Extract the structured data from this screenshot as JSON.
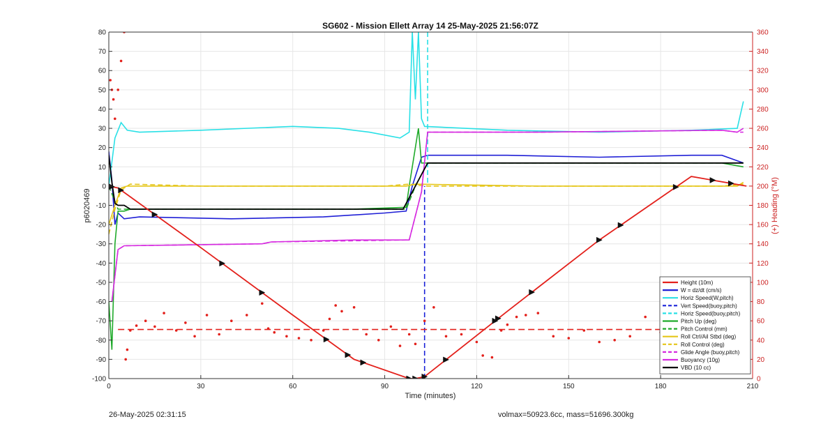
{
  "chart_data": {
    "type": "line",
    "title": "SG602 - Mission Ellett Array 14 25-May-2025 21:56:07Z",
    "xlabel": "Time (minutes)",
    "ylabel_left": "p6020469",
    "ylabel_right": "(+) Heading (°M)",
    "xlim": [
      0,
      210
    ],
    "ylim_left": [
      -100,
      80
    ],
    "ylim_right": [
      0,
      360
    ],
    "xticks": [
      0,
      30,
      60,
      90,
      120,
      150,
      180,
      210
    ],
    "yticks_left": [
      -100,
      -90,
      -80,
      -70,
      -60,
      -50,
      -40,
      -30,
      -20,
      -10,
      0,
      10,
      20,
      30,
      40,
      50,
      60,
      70,
      80
    ],
    "yticks_right": [
      0,
      20,
      40,
      60,
      80,
      100,
      120,
      140,
      160,
      180,
      200,
      220,
      240,
      260,
      280,
      300,
      320,
      340,
      360
    ],
    "grid": true,
    "legend_position": "bottom-right",
    "colors": {
      "height": "#e3201b",
      "w": "#1f1fd6",
      "horiz_speed": "#29e0e6",
      "vert_speed_buoy": "#1a22d8",
      "horiz_speed_buoy": "#29e0e6",
      "pitch_up": "#1faa2a",
      "pitch_control": "#1faa2a",
      "roll": "#e5c619",
      "roll_control": "#e5c619",
      "glide_angle": "#d62be0",
      "buoyancy": "#d62be0",
      "vbd": "#000000",
      "heading": "#e3201b",
      "right_axis": "#cc2222"
    },
    "series": [
      {
        "name": "Height (10m)",
        "style": "solid",
        "x": [
          0,
          3,
          30,
          60,
          80,
          98,
          100,
          103,
          130,
          160,
          190,
          208
        ],
        "y": [
          0,
          -1,
          -32,
          -67,
          -90,
          -100,
          -100,
          -99,
          -65,
          -28,
          5,
          0
        ]
      },
      {
        "name": "W = dz/dt (cm/s)",
        "style": "solid",
        "x": [
          0,
          1,
          2,
          3,
          5,
          10,
          40,
          70,
          90,
          97,
          99,
          101,
          102,
          104,
          130,
          160,
          190,
          200,
          207
        ],
        "y": [
          18,
          3,
          -20,
          -14,
          -17,
          -16,
          -17,
          -16,
          -14,
          -13,
          0,
          10,
          15,
          16,
          16,
          15,
          16,
          16,
          12
        ]
      },
      {
        "name": "Horiz Speed(W,pitch)",
        "style": "solid",
        "x": [
          0,
          2,
          4,
          6,
          10,
          30,
          60,
          75,
          85,
          95,
          98,
          99,
          100,
          101,
          102,
          103,
          130,
          160,
          190,
          205,
          207
        ],
        "y": [
          0,
          25,
          33,
          29,
          28,
          29,
          31,
          30,
          28,
          25,
          28,
          80,
          45,
          80,
          35,
          31,
          29,
          28,
          29,
          30,
          44
        ]
      },
      {
        "name": "Vert Speed(buoy,pitch)",
        "style": "dashed",
        "x": [
          103,
          103
        ],
        "y": [
          -100,
          0
        ]
      },
      {
        "name": "Horiz Speed(buoy,pitch)",
        "style": "dashed",
        "x": [
          104,
          104
        ],
        "y": [
          80,
          0
        ]
      },
      {
        "name": "Pitch Up (deg)",
        "style": "solid",
        "x": [
          0,
          1,
          2,
          3,
          5,
          7,
          40,
          80,
          97,
          98,
          101,
          102,
          104,
          130,
          200,
          207
        ],
        "y": [
          -60,
          -85,
          -30,
          -13,
          -13,
          -12,
          -12,
          -12,
          -11,
          0,
          30,
          12,
          12,
          12,
          12,
          10
        ]
      },
      {
        "name": "Pitch Control (mm)",
        "style": "dashed",
        "x": [
          0,
          3,
          5,
          97,
          100,
          104,
          207
        ],
        "y": [
          0,
          -12,
          -12,
          -12,
          0,
          12,
          12
        ]
      },
      {
        "name": "Roll Ctrl/Ail Stbd (deg)",
        "style": "solid",
        "x": [
          0,
          2,
          4,
          6,
          30,
          60,
          90,
          97,
          100,
          140,
          180,
          205,
          207
        ],
        "y": [
          -20,
          -10,
          -1,
          0,
          0,
          0,
          0,
          0,
          1,
          0,
          0,
          0,
          2
        ]
      },
      {
        "name": "Roll Control (deg)",
        "style": "dashed",
        "x": [
          0,
          2,
          4,
          7,
          30,
          60,
          90,
          98,
          104,
          150,
          200,
          207
        ],
        "y": [
          -25,
          -12,
          -2,
          1,
          0,
          0,
          0,
          1,
          0,
          0,
          0,
          1
        ]
      },
      {
        "name": "Glide Angle (buoy,pitch)",
        "style": "dashed",
        "x": [
          1,
          3,
          5,
          50,
          53,
          97,
          98,
          102,
          104,
          140,
          200,
          205,
          207
        ],
        "y": [
          -60,
          -33,
          -31,
          -30,
          -29,
          -28,
          -28,
          -3,
          28,
          28,
          29,
          28,
          28
        ]
      },
      {
        "name": "Buoyancy (10g)",
        "style": "solid",
        "x": [
          1,
          3,
          5,
          50,
          53,
          80,
          97,
          98,
          102,
          104,
          140,
          200,
          205,
          207
        ],
        "y": [
          -60,
          -33,
          -31,
          -30,
          -29,
          -28,
          -28,
          -28,
          -3,
          28,
          28,
          29,
          28,
          30
        ]
      },
      {
        "name": "VBD (10 cc)",
        "style": "solid",
        "x": [
          0,
          1,
          2,
          3,
          5,
          7,
          40,
          80,
          96,
          99,
          104,
          130,
          180,
          207
        ],
        "y": [
          16,
          2,
          -9,
          -10,
          -10,
          -12,
          -12,
          -12,
          -12,
          -3,
          12,
          12,
          12,
          12
        ]
      }
    ],
    "heading_series": {
      "name": "Heading",
      "axis": "right",
      "x": [
        0.5,
        1,
        1.5,
        2,
        3,
        4,
        5,
        5.5,
        6,
        7,
        9,
        12,
        15,
        18,
        22,
        25,
        28,
        32,
        36,
        40,
        45,
        50,
        52,
        54,
        58,
        62,
        66,
        70,
        72,
        74,
        76,
        80,
        84,
        88,
        92,
        95,
        98,
        100,
        103,
        106,
        110,
        115,
        120,
        122,
        125,
        128,
        130,
        133,
        136,
        140,
        145,
        150,
        155,
        160,
        165,
        170,
        175,
        180,
        185,
        190,
        195,
        198,
        200,
        203,
        205,
        207
      ],
      "y": [
        310,
        300,
        290,
        270,
        300,
        330,
        360,
        20,
        30,
        50,
        55,
        60,
        54,
        68,
        50,
        58,
        44,
        66,
        46,
        60,
        66,
        78,
        52,
        48,
        44,
        42,
        40,
        50,
        62,
        76,
        70,
        74,
        46,
        40,
        54,
        34,
        46,
        36,
        60,
        74,
        44,
        46,
        38,
        24,
        22,
        50,
        56,
        64,
        66,
        68,
        44,
        42,
        50,
        38,
        40,
        44,
        64,
        48,
        40,
        62,
        42,
        38,
        64,
        60,
        74,
        30
      ]
    },
    "heading_mean": {
      "axis": "right",
      "style": "dashed",
      "y": 51
    },
    "markers": {
      "on_series": "Height (10m)",
      "x": [
        1,
        4,
        15,
        37,
        50,
        71,
        78,
        83,
        98,
        100,
        103,
        110,
        126,
        127,
        138,
        160,
        167,
        185,
        197,
        203
      ]
    }
  },
  "footer": {
    "left": "26-May-2025 02:31:15",
    "right": "volmax=50923.6cc, mass=51696.300kg"
  }
}
